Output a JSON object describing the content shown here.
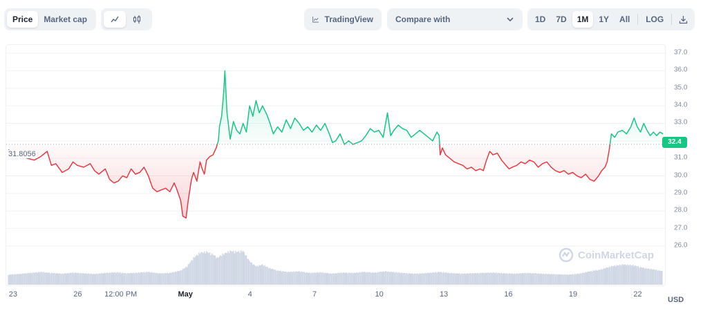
{
  "toolbar": {
    "price_type_tabs": [
      {
        "label": "Price",
        "active": true
      },
      {
        "label": "Market cap",
        "active": false
      }
    ],
    "chart_type_icons": [
      "line-chart-icon",
      "candlestick-icon"
    ],
    "tradingview_label": "TradingView",
    "compare_label": "Compare with",
    "ranges": [
      {
        "label": "1D",
        "active": false
      },
      {
        "label": "7D",
        "active": false
      },
      {
        "label": "1M",
        "active": true
      },
      {
        "label": "1Y",
        "active": false
      },
      {
        "label": "All",
        "active": false
      }
    ],
    "log_label": "LOG",
    "download_icon": "download-icon"
  },
  "watermark": "CoinMarketCap",
  "currency": "USD",
  "colors": {
    "up": "#16c784",
    "down": "#ea3943",
    "volume": "#cfd6e4",
    "grid": "#eff2f5"
  },
  "chart_data": {
    "type": "area",
    "baseline": 31.8056,
    "baseline_label": "31.8056",
    "current_price_label": "32.4",
    "ylim": [
      26.0,
      37.0
    ],
    "y_ticks": [
      "37.0",
      "36.0",
      "35.0",
      "34.0",
      "33.0",
      "32.0",
      "31.0",
      "30.0",
      "29.0",
      "28.0",
      "27.0",
      "26.0"
    ],
    "x_ticks": [
      {
        "label": "23",
        "t": 0.25,
        "bold": false
      },
      {
        "label": "26",
        "t": 3.25,
        "bold": false
      },
      {
        "label": "12:00 PM",
        "t": 5.25,
        "bold": false
      },
      {
        "label": "May",
        "t": 8.25,
        "bold": true
      },
      {
        "label": "4",
        "t": 11.25,
        "bold": false
      },
      {
        "label": "7",
        "t": 14.25,
        "bold": false
      },
      {
        "label": "10",
        "t": 17.25,
        "bold": false
      },
      {
        "label": "13",
        "t": 20.25,
        "bold": false
      },
      {
        "label": "16",
        "t": 23.25,
        "bold": false
      },
      {
        "label": "19",
        "t": 26.25,
        "bold": false
      },
      {
        "label": "22",
        "t": 29.25,
        "bold": false
      }
    ],
    "t_range": [
      -0.1,
      30.55
    ],
    "series": [
      {
        "points": [
          [
            0,
            31.5
          ],
          [
            0.3,
            31.2
          ],
          [
            0.6,
            31.1
          ],
          [
            0.9,
            31.0
          ],
          [
            1.2,
            30.9
          ],
          [
            1.5,
            31.1
          ],
          [
            1.8,
            31.4
          ],
          [
            2.0,
            30.6
          ],
          [
            2.2,
            30.7
          ],
          [
            2.5,
            30.2
          ],
          [
            2.8,
            30.4
          ],
          [
            3.0,
            30.8
          ],
          [
            3.2,
            30.6
          ],
          [
            3.5,
            30.5
          ],
          [
            3.8,
            30.7
          ],
          [
            4.0,
            30.3
          ],
          [
            4.2,
            30.1
          ],
          [
            4.5,
            30.4
          ],
          [
            4.7,
            29.8
          ],
          [
            4.9,
            29.6
          ],
          [
            5.1,
            29.7
          ],
          [
            5.3,
            30.0
          ],
          [
            5.5,
            29.9
          ],
          [
            5.7,
            30.4
          ],
          [
            5.9,
            30.1
          ],
          [
            6.1,
            30.2
          ],
          [
            6.3,
            30.5
          ],
          [
            6.5,
            30.0
          ],
          [
            6.7,
            29.3
          ],
          [
            6.9,
            29.1
          ],
          [
            7.1,
            29.2
          ],
          [
            7.3,
            29.3
          ],
          [
            7.5,
            29.1
          ],
          [
            7.7,
            29.6
          ],
          [
            7.8,
            29.3
          ],
          [
            8.0,
            28.6
          ],
          [
            8.1,
            27.7
          ],
          [
            8.25,
            27.6
          ],
          [
            8.35,
            28.6
          ],
          [
            8.5,
            29.8
          ],
          [
            8.6,
            30.2
          ],
          [
            8.75,
            29.7
          ],
          [
            8.9,
            30.8
          ],
          [
            9.0,
            30.4
          ],
          [
            9.1,
            30.1
          ],
          [
            9.2,
            30.9
          ],
          [
            9.35,
            31.1
          ],
          [
            9.5,
            31.2
          ],
          [
            9.65,
            31.6
          ],
          [
            9.75,
            32.0
          ],
          [
            9.8,
            32.8
          ],
          [
            9.9,
            33.4
          ],
          [
            10.0,
            34.8
          ],
          [
            10.05,
            36.0
          ],
          [
            10.15,
            33.6
          ],
          [
            10.3,
            32.1
          ],
          [
            10.45,
            33.1
          ],
          [
            10.6,
            32.6
          ],
          [
            10.75,
            32.4
          ],
          [
            10.9,
            33.0
          ],
          [
            11.05,
            32.5
          ],
          [
            11.2,
            34.0
          ],
          [
            11.35,
            33.4
          ],
          [
            11.5,
            34.3
          ],
          [
            11.65,
            33.6
          ],
          [
            11.8,
            34.0
          ],
          [
            12.0,
            33.5
          ],
          [
            12.15,
            33.0
          ],
          [
            12.3,
            32.4
          ],
          [
            12.5,
            32.8
          ],
          [
            12.7,
            32.5
          ],
          [
            12.9,
            33.2
          ],
          [
            13.1,
            32.7
          ],
          [
            13.3,
            33.3
          ],
          [
            13.5,
            33.0
          ],
          [
            13.7,
            32.6
          ],
          [
            13.9,
            32.8
          ],
          [
            14.1,
            32.5
          ],
          [
            14.3,
            32.9
          ],
          [
            14.5,
            32.6
          ],
          [
            14.7,
            33.0
          ],
          [
            14.9,
            32.4
          ],
          [
            15.05,
            31.9
          ],
          [
            15.2,
            32.0
          ],
          [
            15.4,
            32.4
          ],
          [
            15.6,
            31.8
          ],
          [
            15.8,
            32.0
          ],
          [
            16.0,
            31.8
          ],
          [
            16.2,
            31.9
          ],
          [
            16.4,
            32.0
          ],
          [
            16.6,
            32.3
          ],
          [
            16.8,
            32.7
          ],
          [
            17.0,
            32.5
          ],
          [
            17.2,
            32.6
          ],
          [
            17.4,
            32.2
          ],
          [
            17.6,
            33.6
          ],
          [
            17.75,
            32.3
          ],
          [
            17.9,
            32.6
          ],
          [
            18.1,
            32.9
          ],
          [
            18.3,
            32.7
          ],
          [
            18.5,
            32.6
          ],
          [
            18.7,
            32.2
          ],
          [
            18.9,
            32.4
          ],
          [
            19.1,
            32.6
          ],
          [
            19.3,
            32.4
          ],
          [
            19.5,
            32.2
          ],
          [
            19.7,
            32.0
          ],
          [
            19.9,
            32.5
          ],
          [
            20.0,
            32.3
          ],
          [
            20.05,
            31.2
          ],
          [
            20.15,
            31.6
          ],
          [
            20.3,
            31.2
          ],
          [
            20.5,
            31.0
          ],
          [
            20.7,
            30.8
          ],
          [
            20.9,
            30.7
          ],
          [
            21.1,
            30.6
          ],
          [
            21.3,
            30.4
          ],
          [
            21.5,
            30.5
          ],
          [
            21.7,
            30.3
          ],
          [
            21.9,
            30.4
          ],
          [
            22.05,
            30.3
          ],
          [
            22.2,
            30.9
          ],
          [
            22.35,
            31.4
          ],
          [
            22.5,
            31.2
          ],
          [
            22.7,
            31.3
          ],
          [
            22.9,
            30.9
          ],
          [
            23.1,
            30.6
          ],
          [
            23.25,
            30.4
          ],
          [
            23.4,
            30.5
          ],
          [
            23.6,
            30.6
          ],
          [
            23.8,
            30.8
          ],
          [
            24.0,
            30.7
          ],
          [
            24.2,
            30.9
          ],
          [
            24.4,
            30.8
          ],
          [
            24.6,
            30.5
          ],
          [
            24.8,
            30.7
          ],
          [
            25.0,
            30.8
          ],
          [
            25.2,
            30.5
          ],
          [
            25.4,
            30.3
          ],
          [
            25.6,
            30.2
          ],
          [
            25.8,
            30.3
          ],
          [
            26.0,
            30.1
          ],
          [
            26.2,
            30.2
          ],
          [
            26.4,
            30.0
          ],
          [
            26.6,
            29.9
          ],
          [
            26.8,
            30.1
          ],
          [
            27.0,
            29.8
          ],
          [
            27.2,
            29.7
          ],
          [
            27.4,
            30.0
          ],
          [
            27.55,
            30.3
          ],
          [
            27.7,
            30.5
          ],
          [
            27.8,
            30.8
          ],
          [
            27.9,
            31.5
          ],
          [
            28.0,
            32.4
          ],
          [
            28.15,
            32.2
          ],
          [
            28.3,
            32.5
          ],
          [
            28.5,
            32.6
          ],
          [
            28.7,
            32.4
          ],
          [
            28.9,
            32.8
          ],
          [
            29.05,
            33.3
          ],
          [
            29.2,
            32.8
          ],
          [
            29.35,
            32.5
          ],
          [
            29.5,
            33.0
          ],
          [
            29.65,
            32.6
          ],
          [
            29.8,
            32.3
          ],
          [
            29.95,
            32.5
          ],
          [
            30.1,
            32.3
          ],
          [
            30.25,
            32.5
          ],
          [
            30.4,
            32.4
          ]
        ]
      },
      {
        "name": "Volume",
        "points": [
          [
            0,
            0.3
          ],
          [
            0.5,
            0.32
          ],
          [
            1,
            0.35
          ],
          [
            1.5,
            0.38
          ],
          [
            2,
            0.35
          ],
          [
            2.5,
            0.33
          ],
          [
            3,
            0.36
          ],
          [
            3.5,
            0.34
          ],
          [
            4,
            0.32
          ],
          [
            4.5,
            0.35
          ],
          [
            5,
            0.37
          ],
          [
            5.5,
            0.34
          ],
          [
            6,
            0.36
          ],
          [
            6.5,
            0.38
          ],
          [
            7,
            0.34
          ],
          [
            7.5,
            0.35
          ],
          [
            8,
            0.42
          ],
          [
            8.3,
            0.55
          ],
          [
            8.6,
            0.8
          ],
          [
            8.9,
            0.95
          ],
          [
            9.2,
            0.98
          ],
          [
            9.5,
            0.9
          ],
          [
            9.7,
            0.8
          ],
          [
            10.0,
            0.92
          ],
          [
            10.3,
            1.0
          ],
          [
            10.6,
            0.98
          ],
          [
            10.9,
            1.0
          ],
          [
            11.2,
            0.7
          ],
          [
            11.5,
            0.55
          ],
          [
            11.8,
            0.6
          ],
          [
            12.1,
            0.5
          ],
          [
            12.5,
            0.42
          ],
          [
            13,
            0.38
          ],
          [
            13.5,
            0.4
          ],
          [
            14,
            0.35
          ],
          [
            14.5,
            0.37
          ],
          [
            15,
            0.33
          ],
          [
            15.5,
            0.36
          ],
          [
            16,
            0.35
          ],
          [
            16.5,
            0.38
          ],
          [
            17,
            0.36
          ],
          [
            17.5,
            0.4
          ],
          [
            18,
            0.37
          ],
          [
            18.5,
            0.34
          ],
          [
            19,
            0.33
          ],
          [
            19.5,
            0.35
          ],
          [
            20,
            0.38
          ],
          [
            20.5,
            0.35
          ],
          [
            21,
            0.33
          ],
          [
            21.5,
            0.34
          ],
          [
            22,
            0.35
          ],
          [
            22.5,
            0.36
          ],
          [
            23,
            0.34
          ],
          [
            23.5,
            0.33
          ],
          [
            24,
            0.35
          ],
          [
            24.5,
            0.34
          ],
          [
            25,
            0.32
          ],
          [
            25.5,
            0.31
          ],
          [
            26,
            0.3
          ],
          [
            26.5,
            0.33
          ],
          [
            27,
            0.4
          ],
          [
            27.5,
            0.45
          ],
          [
            28,
            0.55
          ],
          [
            28.5,
            0.6
          ],
          [
            29,
            0.58
          ],
          [
            29.5,
            0.5
          ],
          [
            30,
            0.45
          ],
          [
            30.4,
            0.4
          ]
        ]
      }
    ]
  }
}
